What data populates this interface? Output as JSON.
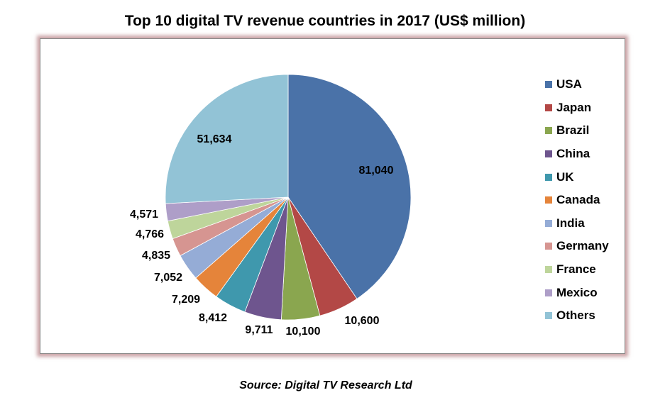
{
  "chart_data": {
    "type": "pie",
    "title": "Top 10 digital TV revenue countries in 2017 (US$ million)",
    "source": "Source: Digital TV Research Ltd",
    "legend_position": "right",
    "slices": [
      {
        "name": "USA",
        "value": 81040,
        "label": "81,040",
        "color": "#4a72a8"
      },
      {
        "name": "Japan",
        "value": 10600,
        "label": "10,600",
        "color": "#b34846"
      },
      {
        "name": "Brazil",
        "value": 10100,
        "label": "10,100",
        "color": "#8aa64f"
      },
      {
        "name": "China",
        "value": 9711,
        "label": "9,711",
        "color": "#6e558e"
      },
      {
        "name": "UK",
        "value": 8412,
        "label": "8,412",
        "color": "#3f98ad"
      },
      {
        "name": "Canada",
        "value": 7209,
        "label": "7,209",
        "color": "#e5843a"
      },
      {
        "name": "India",
        "value": 7052,
        "label": "7,052",
        "color": "#95acd6"
      },
      {
        "name": "Germany",
        "value": 4835,
        "label": "4,835",
        "color": "#d69591"
      },
      {
        "name": "France",
        "value": 4766,
        "label": "4,766",
        "color": "#bed59b"
      },
      {
        "name": "Mexico",
        "value": 4571,
        "label": "4,571",
        "color": "#ae9ec8"
      },
      {
        "name": "Others",
        "value": 51634,
        "label": "51,634",
        "color": "#92c3d6"
      }
    ]
  }
}
